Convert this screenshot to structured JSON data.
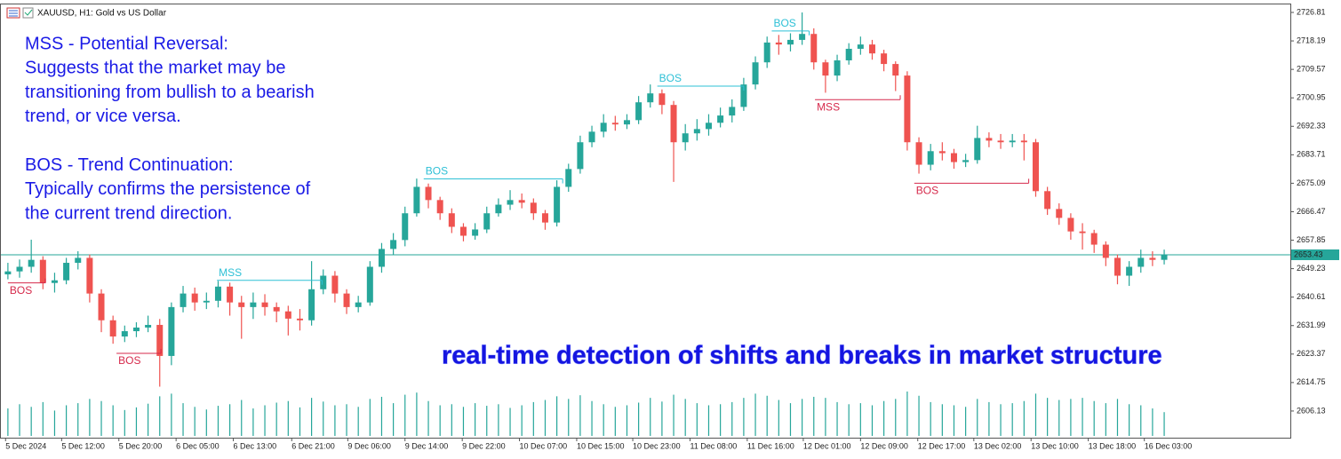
{
  "chart_data": {
    "type": "candlestick",
    "header": "XAUUSD, H1:  Gold vs US Dollar",
    "notes": [
      [
        "MSS - Potential Reversal:",
        "Suggests that the market may be",
        "transitioning from bullish to a bearish",
        "trend, or vice versa."
      ],
      [
        "BOS - Trend Continuation:",
        "Typically confirms the persistence of",
        "the current trend direction."
      ]
    ],
    "caption": "real-time detection of shifts and breaks in market structure",
    "up_color": "#26a69a",
    "down_color": "#ef5350",
    "volume_color": "#26a69a",
    "last_price": 2653.43,
    "ylim": [
      2598.05,
      2729.23
    ],
    "yticks": [
      2726.81,
      2718.19,
      2709.57,
      2700.95,
      2692.33,
      2683.71,
      2675.09,
      2666.47,
      2657.85,
      2649.23,
      2640.61,
      2631.99,
      2623.37,
      2614.75,
      2606.13
    ],
    "xlim": [
      -0.6,
      109.8
    ],
    "xticks": [
      {
        "value": -0.2,
        "label": "5 Dec 2024"
      },
      {
        "value": 4.6,
        "label": "5 Dec 12:00"
      },
      {
        "value": 9.5,
        "label": "5 Dec 20:00"
      },
      {
        "value": 14.4,
        "label": "6 Dec 05:00"
      },
      {
        "value": 19.3,
        "label": "6 Dec 13:00"
      },
      {
        "value": 24.3,
        "label": "6 Dec 21:00"
      },
      {
        "value": 29.1,
        "label": "9 Dec 06:00"
      },
      {
        "value": 34,
        "label": "9 Dec 14:00"
      },
      {
        "value": 38.9,
        "label": "9 Dec 22:00"
      },
      {
        "value": 43.8,
        "label": "10 Dec 07:00"
      },
      {
        "value": 48.7,
        "label": "10 Dec 15:00"
      },
      {
        "value": 53.5,
        "label": "10 Dec 23:00"
      },
      {
        "value": 58.4,
        "label": "11 Dec 08:00"
      },
      {
        "value": 63.3,
        "label": "11 Dec 16:00"
      },
      {
        "value": 68.1,
        "label": "12 Dec 01:00"
      },
      {
        "value": 73,
        "label": "12 Dec 09:00"
      },
      {
        "value": 77.9,
        "label": "12 Dec 17:00"
      },
      {
        "value": 82.7,
        "label": "13 Dec 02:00"
      },
      {
        "value": 87.6,
        "label": "13 Dec 10:00"
      },
      {
        "value": 92.5,
        "label": "13 Dec 18:00"
      },
      {
        "value": 97.3,
        "label": "16 Dec 03:00"
      }
    ],
    "candles": [
      [
        2647.5,
        2651,
        2646,
        2648.4
      ],
      [
        2648.4,
        2652,
        2646.5,
        2649.8
      ],
      [
        2649.8,
        2658,
        2648,
        2651.9
      ],
      [
        2651.9,
        2653,
        2643,
        2644.9
      ],
      [
        2644.9,
        2648,
        2642,
        2645.7
      ],
      [
        2645.7,
        2652.5,
        2644.5,
        2651
      ],
      [
        2651,
        2654.5,
        2649,
        2652.5
      ],
      [
        2652.5,
        2653.5,
        2639,
        2641.7
      ],
      [
        2641.7,
        2643,
        2630,
        2633.6
      ],
      [
        2633.6,
        2635,
        2626.5,
        2628.7
      ],
      [
        2628.7,
        2632,
        2627,
        2630.3
      ],
      [
        2630.3,
        2633,
        2628.5,
        2631.4
      ],
      [
        2631.4,
        2635,
        2630,
        2632.2
      ],
      [
        2632.2,
        2634,
        2613.5,
        2622.8
      ],
      [
        2622.8,
        2639,
        2620,
        2637.6
      ],
      [
        2637.6,
        2644,
        2636,
        2641.7
      ],
      [
        2641.7,
        2643.5,
        2636.5,
        2639
      ],
      [
        2639,
        2642,
        2637,
        2639.5
      ],
      [
        2639.5,
        2645.5,
        2637.5,
        2643.8
      ],
      [
        2643.8,
        2645,
        2635,
        2639
      ],
      [
        2639,
        2641,
        2628,
        2637.6
      ],
      [
        2637.6,
        2642,
        2634,
        2639
      ],
      [
        2639,
        2641.5,
        2635,
        2637.6
      ],
      [
        2637.6,
        2639,
        2633,
        2636.3
      ],
      [
        2636.3,
        2638,
        2629,
        2634.1
      ],
      [
        2634.1,
        2637,
        2630.5,
        2633.6
      ],
      [
        2633.6,
        2651.5,
        2632,
        2643
      ],
      [
        2643,
        2649,
        2641.5,
        2647.1
      ],
      [
        2647.1,
        2648.5,
        2639,
        2641.7
      ],
      [
        2641.7,
        2643,
        2635.5,
        2637.6
      ],
      [
        2637.6,
        2641,
        2636,
        2639
      ],
      [
        2639,
        2651.5,
        2638,
        2649.8
      ],
      [
        2649.8,
        2657,
        2648,
        2655.2
      ],
      [
        2655.2,
        2660,
        2653.5,
        2657.9
      ],
      [
        2657.9,
        2668,
        2656,
        2666
      ],
      [
        2666,
        2676.5,
        2665,
        2674
      ],
      [
        2674,
        2675,
        2667.5,
        2670
      ],
      [
        2670,
        2671,
        2664,
        2666
      ],
      [
        2666,
        2667.5,
        2660,
        2661.9
      ],
      [
        2661.9,
        2663,
        2657.5,
        2659.2
      ],
      [
        2659.2,
        2663,
        2658,
        2661.1
      ],
      [
        2661.1,
        2668,
        2660,
        2666
      ],
      [
        2666,
        2670.5,
        2665,
        2668.6
      ],
      [
        2668.6,
        2673,
        2667,
        2670
      ],
      [
        2670,
        2672,
        2667.5,
        2669.2
      ],
      [
        2669.2,
        2670.5,
        2664,
        2666
      ],
      [
        2666,
        2667,
        2661,
        2663.2
      ],
      [
        2663.2,
        2676,
        2662,
        2674
      ],
      [
        2674,
        2681,
        2672.5,
        2679.4
      ],
      [
        2679.4,
        2689.5,
        2678,
        2687.5
      ],
      [
        2687.5,
        2692.5,
        2686,
        2690.7
      ],
      [
        2690.7,
        2696,
        2689,
        2693.4
      ],
      [
        2693.4,
        2695.5,
        2691,
        2692.9
      ],
      [
        2692.9,
        2696,
        2691.5,
        2694.2
      ],
      [
        2694.2,
        2701.5,
        2693,
        2699.6
      ],
      [
        2699.6,
        2705,
        2698,
        2702.3
      ],
      [
        2702.3,
        2703.5,
        2696,
        2698.8
      ],
      [
        2698.8,
        2700,
        2675.5,
        2687.5
      ],
      [
        2687.5,
        2693,
        2685,
        2690.2
      ],
      [
        2690.2,
        2694.5,
        2688,
        2691.5
      ],
      [
        2691.5,
        2696,
        2689.5,
        2693.4
      ],
      [
        2693.4,
        2698,
        2692,
        2695.6
      ],
      [
        2695.6,
        2700.5,
        2693.5,
        2698.2
      ],
      [
        2698.2,
        2707,
        2697,
        2705
      ],
      [
        2705,
        2713.5,
        2703.5,
        2711.7
      ],
      [
        2711.7,
        2719.5,
        2710,
        2717.7
      ],
      [
        2717.7,
        2720,
        2714,
        2717.1
      ],
      [
        2717.1,
        2720.5,
        2715,
        2718.5
      ],
      [
        2718.5,
        2726.8,
        2717,
        2720.3
      ],
      [
        2720.3,
        2722,
        2709.5,
        2711.7
      ],
      [
        2711.7,
        2712.5,
        2702.5,
        2707.7
      ],
      [
        2707.7,
        2714,
        2706,
        2712.3
      ],
      [
        2712.3,
        2717.5,
        2711,
        2715.8
      ],
      [
        2715.8,
        2719.5,
        2714,
        2717.1
      ],
      [
        2717.1,
        2718.5,
        2712.5,
        2714.4
      ],
      [
        2714.4,
        2715.5,
        2709,
        2711.2
      ],
      [
        2711.2,
        2712,
        2703,
        2707.7
      ],
      [
        2707.7,
        2709,
        2685,
        2687.5
      ],
      [
        2687.5,
        2689,
        2678,
        2680.7
      ],
      [
        2680.7,
        2687,
        2679,
        2684.8
      ],
      [
        2684.8,
        2687.5,
        2682,
        2684.2
      ],
      [
        2684.2,
        2685.5,
        2679.5,
        2681.5
      ],
      [
        2681.5,
        2684,
        2680,
        2682.1
      ],
      [
        2682.1,
        2692.5,
        2681,
        2688.8
      ],
      [
        2688.8,
        2690.5,
        2686,
        2688
      ],
      [
        2688,
        2690,
        2685.5,
        2687.5
      ],
      [
        2687.5,
        2690,
        2686,
        2688
      ],
      [
        2688,
        2690,
        2682,
        2687.5
      ],
      [
        2687.5,
        2688.5,
        2671,
        2672.7
      ],
      [
        2672.7,
        2674,
        2665.5,
        2667.3
      ],
      [
        2667.3,
        2669,
        2662.5,
        2664.6
      ],
      [
        2664.6,
        2666,
        2658,
        2660.5
      ],
      [
        2660.5,
        2663,
        2655,
        2660
      ],
      [
        2660,
        2661,
        2654,
        2656.5
      ],
      [
        2656.5,
        2657.5,
        2650,
        2652.5
      ],
      [
        2652.5,
        2653.5,
        2644.5,
        2647.1
      ],
      [
        2647.1,
        2651.5,
        2644,
        2649.8
      ],
      [
        2649.8,
        2655,
        2648,
        2652.5
      ],
      [
        2652.5,
        2654.5,
        2650,
        2651.9
      ],
      [
        2651.9,
        2655,
        2650.5,
        2653.43
      ]
    ],
    "volume": [
      52,
      60,
      55,
      64,
      48,
      58,
      62,
      70,
      66,
      58,
      49,
      54,
      61,
      75,
      80,
      62,
      55,
      50,
      57,
      60,
      68,
      52,
      58,
      63,
      66,
      54,
      72,
      65,
      58,
      60,
      55,
      70,
      74,
      62,
      78,
      82,
      66,
      58,
      60,
      55,
      62,
      57,
      60,
      53,
      58,
      64,
      68,
      75,
      70,
      77,
      66,
      60,
      55,
      58,
      63,
      72,
      65,
      78,
      70,
      62,
      58,
      60,
      64,
      72,
      80,
      76,
      68,
      62,
      70,
      74,
      72,
      64,
      60,
      62,
      58,
      66,
      70,
      84,
      76,
      64,
      60,
      58,
      55,
      70,
      64,
      60,
      62,
      66,
      80,
      72,
      68,
      70,
      72,
      66,
      62,
      70,
      60,
      58,
      52,
      45
    ],
    "annotations": [
      {
        "label": "BOS",
        "color": "#d6294b",
        "side": "below",
        "x": [
          0,
          3.2
        ],
        "y": 2644.91
      },
      {
        "label": "BOS",
        "color": "#d6294b",
        "side": "below",
        "x": [
          9.3,
          13.1
        ],
        "y": 2623.6
      },
      {
        "label": "MSS",
        "color": "#2ec0d6",
        "side": "above",
        "x": [
          17.9,
          26.9
        ],
        "y": 2645.7
      },
      {
        "label": "BOS",
        "color": "#2ec0d6",
        "side": "above",
        "x": [
          35.6,
          47.5
        ],
        "y": 2676.4
      },
      {
        "label": "BOS",
        "color": "#2ec0d6",
        "side": "above",
        "x": [
          55.6,
          63
        ],
        "y": 2704.5
      },
      {
        "label": "BOS",
        "color": "#2ec0d6",
        "side": "above",
        "x": [
          65.4,
          68.6
        ],
        "y": 2721.2
      },
      {
        "label": "MSS",
        "color": "#d6294b",
        "side": "below",
        "x": [
          69.1,
          76.4
        ],
        "y": 2700.4
      },
      {
        "label": "BOS",
        "color": "#d6294b",
        "side": "below",
        "x": [
          77.6,
          87.4
        ],
        "y": 2675.1
      }
    ]
  }
}
